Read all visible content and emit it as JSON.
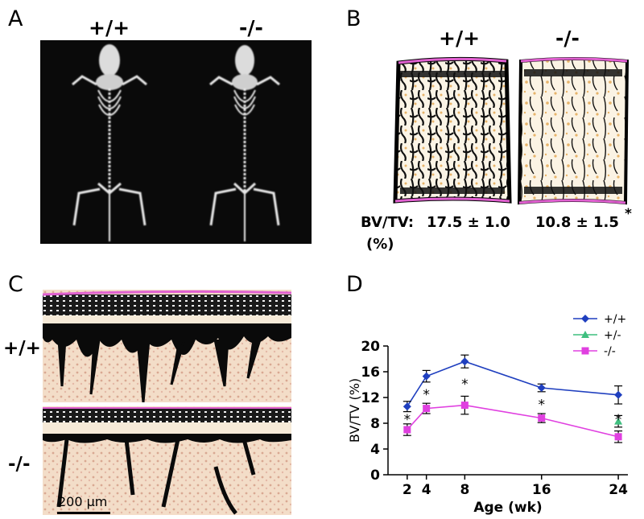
{
  "panels": {
    "A": {
      "letter": "A",
      "label_wt": "+/+",
      "label_ko": "-/-"
    },
    "B": {
      "letter": "B",
      "label_wt": "+/+",
      "label_ko": "-/-",
      "metric_label": "BV/TV:",
      "metric_unit": "(%)",
      "value_wt": "17.5 ± 1.0",
      "value_ko": "10.8 ± 1.5",
      "sig_mark": "*"
    },
    "C": {
      "letter": "C",
      "label_wt": "+/+",
      "label_ko": "-/-",
      "scale_bar": "200 µm"
    },
    "D": {
      "letter": "D"
    }
  },
  "chart_data": {
    "type": "line",
    "xlabel": "Age (wk)",
    "ylabel": "BV/TV (%)",
    "x": [
      2,
      4,
      8,
      16,
      24
    ],
    "xticks": [
      2,
      4,
      8,
      16,
      24
    ],
    "yticks": [
      0,
      4,
      8,
      12,
      16,
      20
    ],
    "xlim": [
      0,
      25
    ],
    "ylim": [
      0,
      20
    ],
    "legend_position": "top-right",
    "series": [
      {
        "name": "+/+",
        "color": "#1f3fbf",
        "marker": "diamond",
        "values": [
          10.6,
          15.3,
          17.6,
          13.5,
          12.4
        ],
        "errors": [
          0.8,
          0.9,
          1.0,
          0.6,
          1.4
        ]
      },
      {
        "name": "+/-",
        "color": "#3fbf7f",
        "marker": "triangle",
        "values": [
          null,
          null,
          null,
          null,
          8.3
        ],
        "errors": [
          null,
          null,
          null,
          null,
          0.9
        ]
      },
      {
        "name": "-/-",
        "color": "#e040e0",
        "marker": "square",
        "values": [
          7.0,
          10.3,
          10.8,
          8.8,
          5.9
        ],
        "errors": [
          0.9,
          0.8,
          1.4,
          0.7,
          0.9
        ]
      }
    ],
    "significance": [
      {
        "x": 2,
        "mark": "*"
      },
      {
        "x": 4,
        "mark": "*"
      },
      {
        "x": 8,
        "mark": "*"
      },
      {
        "x": 16,
        "mark": "*"
      },
      {
        "x": 24,
        "mark": "*"
      }
    ]
  }
}
